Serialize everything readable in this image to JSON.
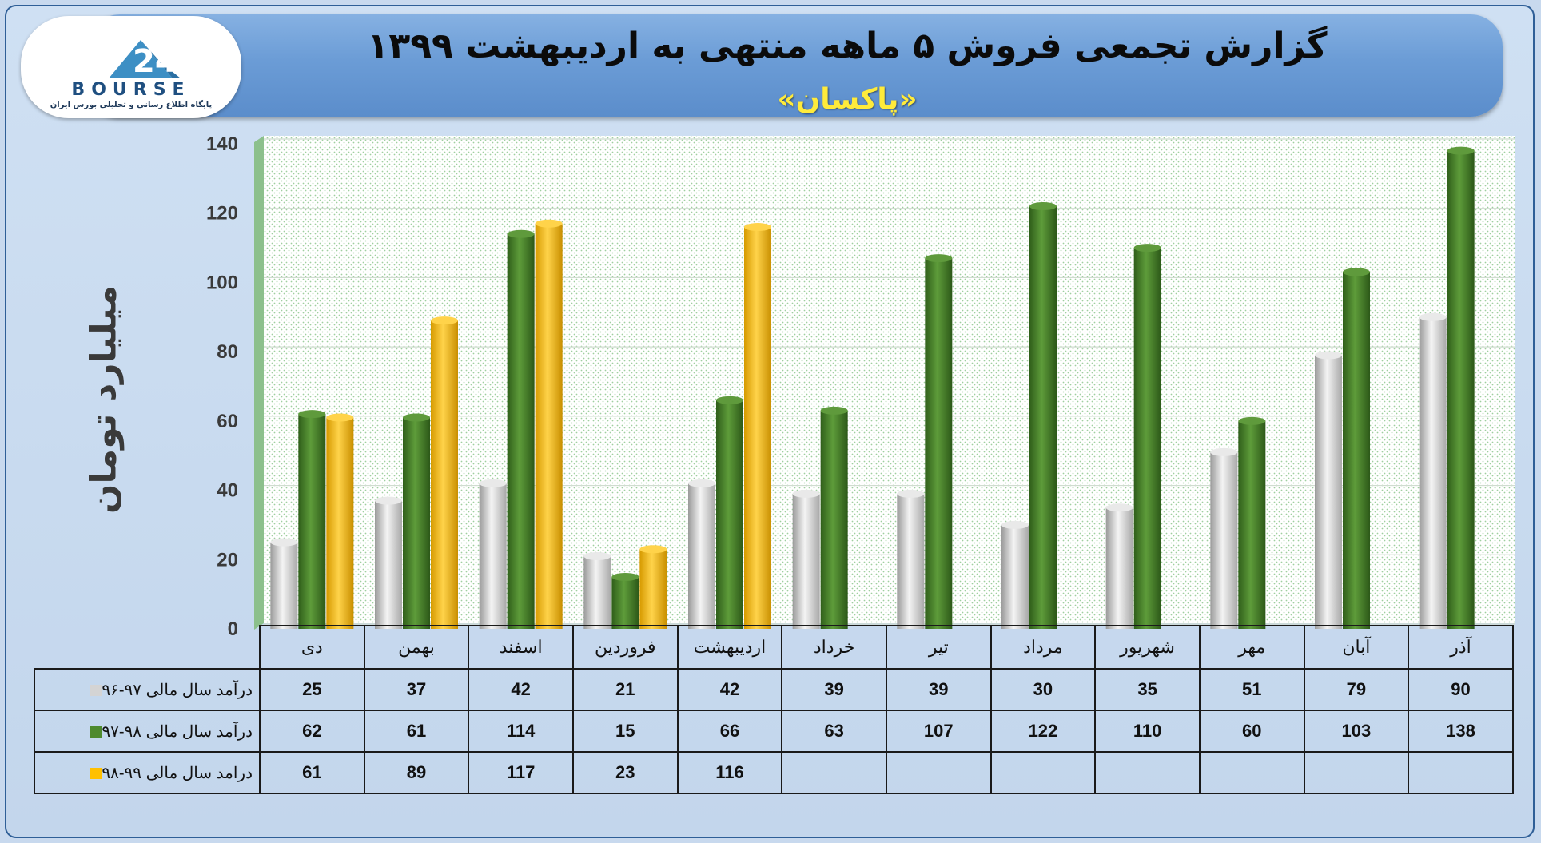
{
  "header": {
    "title": "گزارش تجمعی فروش ۵ ماهه منتهی به اردیبهشت ۱۳۹۹",
    "subtitle": "«پاکسان»"
  },
  "logo": {
    "text": "BOURSE",
    "caption": "پایگاه اطلاع رسانی و تحلیلی بورس ایران"
  },
  "chart_data": {
    "type": "bar",
    "ylabel": "میلیارد تومان",
    "ylim": [
      0,
      140
    ],
    "yticks": [
      0,
      20,
      40,
      60,
      80,
      100,
      120,
      140
    ],
    "grid": true,
    "categories": [
      "دی",
      "بهمن",
      "اسفند",
      "فروردین",
      "اردیبهشت",
      "خرداد",
      "تیر",
      "مرداد",
      "شهریور",
      "مهر",
      "آبان",
      "آذر"
    ],
    "series": [
      {
        "name": "درآمد سال مالی ۹۷-۹۶",
        "color": "#d4d4d4",
        "values": [
          25,
          37,
          42,
          21,
          42,
          39,
          39,
          30,
          35,
          51,
          79,
          90
        ]
      },
      {
        "name": "درآمد سال مالی ۹۸-۹۷",
        "color": "#4e8a2e",
        "values": [
          62,
          61,
          114,
          15,
          66,
          63,
          107,
          122,
          110,
          60,
          103,
          138
        ]
      },
      {
        "name": "درامد سال مالی ۹۹-۹۸",
        "color": "#ffc000",
        "values": [
          61,
          89,
          117,
          23,
          116,
          null,
          null,
          null,
          null,
          null,
          null,
          null
        ]
      }
    ]
  }
}
